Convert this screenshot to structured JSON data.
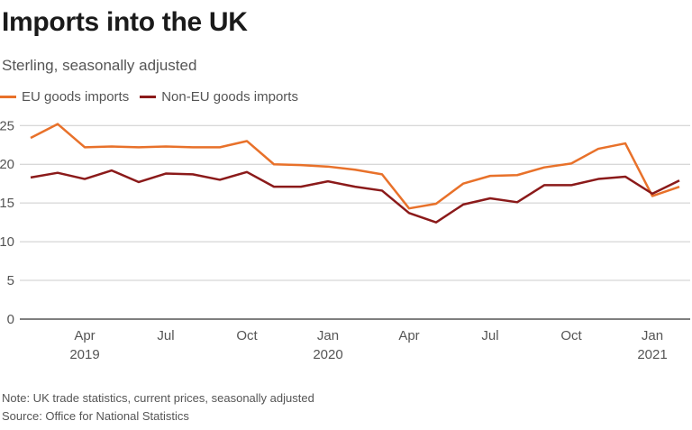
{
  "chart_data": {
    "type": "line",
    "title": "Imports into the UK",
    "subtitle": "Sterling, seasonally adjusted",
    "xlabel": "",
    "ylabel": "",
    "ylim": [
      0,
      25
    ],
    "yticks": [
      0,
      5,
      10,
      15,
      20,
      25
    ],
    "grid": true,
    "legend_position": "top-left",
    "x": [
      "2019-02",
      "2019-03",
      "2019-04",
      "2019-05",
      "2019-06",
      "2019-07",
      "2019-08",
      "2019-09",
      "2019-10",
      "2019-11",
      "2019-12",
      "2020-01",
      "2020-02",
      "2020-03",
      "2020-04",
      "2020-05",
      "2020-06",
      "2020-07",
      "2020-08",
      "2020-09",
      "2020-10",
      "2020-11",
      "2020-12",
      "2021-01",
      "2021-02"
    ],
    "xticks": [
      {
        "index": 2,
        "label": "Apr",
        "year": "2019"
      },
      {
        "index": 5,
        "label": "Jul",
        "year": ""
      },
      {
        "index": 8,
        "label": "Oct",
        "year": ""
      },
      {
        "index": 11,
        "label": "Jan",
        "year": "2020"
      },
      {
        "index": 14,
        "label": "Apr",
        "year": ""
      },
      {
        "index": 17,
        "label": "Jul",
        "year": ""
      },
      {
        "index": 20,
        "label": "Oct",
        "year": ""
      },
      {
        "index": 23,
        "label": "Jan",
        "year": "2021"
      }
    ],
    "series": [
      {
        "name": "EU goods imports",
        "color": "#e8712a",
        "values": [
          23.4,
          25.2,
          22.2,
          22.3,
          22.2,
          22.3,
          22.2,
          22.2,
          23.0,
          20.0,
          19.9,
          19.7,
          19.3,
          18.7,
          14.3,
          14.9,
          17.5,
          18.5,
          18.6,
          19.6,
          20.1,
          22.0,
          22.7,
          15.9,
          17.1
        ]
      },
      {
        "name": "Non-EU goods imports",
        "color": "#8b1a1a",
        "values": [
          18.3,
          18.9,
          18.1,
          19.2,
          17.7,
          18.8,
          18.7,
          18.0,
          19.0,
          17.1,
          17.1,
          17.8,
          17.1,
          16.6,
          13.7,
          12.5,
          14.8,
          15.6,
          15.1,
          17.3,
          17.3,
          18.1,
          18.4,
          16.2,
          17.9
        ]
      }
    ],
    "note": "Note: UK trade statistics, current prices, seasonally adjusted",
    "source": "Source: Office for National Statistics"
  }
}
